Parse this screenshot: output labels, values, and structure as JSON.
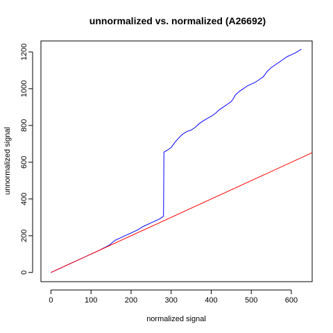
{
  "chart_data": {
    "type": "line",
    "title": "unnormalized vs. normalized (A26692)",
    "xlabel": "normalized signal",
    "ylabel": "unnormalized signal",
    "xlim": [
      -25,
      652
    ],
    "ylim": [
      -50,
      1260
    ],
    "xticks": [
      0,
      100,
      200,
      300,
      400,
      500,
      600
    ],
    "yticks": [
      0,
      200,
      400,
      600,
      800,
      1000,
      1200
    ],
    "grid": false,
    "series": [
      {
        "color": "#0000ff",
        "x": [
          0,
          20,
          50,
          80,
          100,
          120,
          145,
          160,
          180,
          200,
          215,
          230,
          250,
          270,
          280,
          281,
          282,
          290,
          300,
          310,
          320,
          330,
          340,
          350,
          360,
          370,
          380,
          390,
          400,
          410,
          420,
          430,
          440,
          450,
          455,
          460,
          470,
          480,
          490,
          500,
          510,
          520,
          530,
          540,
          550,
          560,
          570,
          580,
          590,
          600,
          610,
          625
        ],
        "y": [
          0,
          20,
          50,
          80,
          100,
          120,
          148,
          175,
          195,
          215,
          230,
          250,
          270,
          290,
          305,
          310,
          655,
          665,
          680,
          710,
          735,
          755,
          768,
          775,
          790,
          810,
          825,
          838,
          850,
          865,
          885,
          900,
          915,
          930,
          945,
          965,
          985,
          1000,
          1015,
          1025,
          1035,
          1050,
          1065,
          1095,
          1115,
          1130,
          1145,
          1160,
          1175,
          1185,
          1195,
          1215
        ]
      },
      {
        "color": "#ff0000",
        "x": [
          0,
          652
        ],
        "y": [
          0,
          652
        ]
      }
    ]
  }
}
